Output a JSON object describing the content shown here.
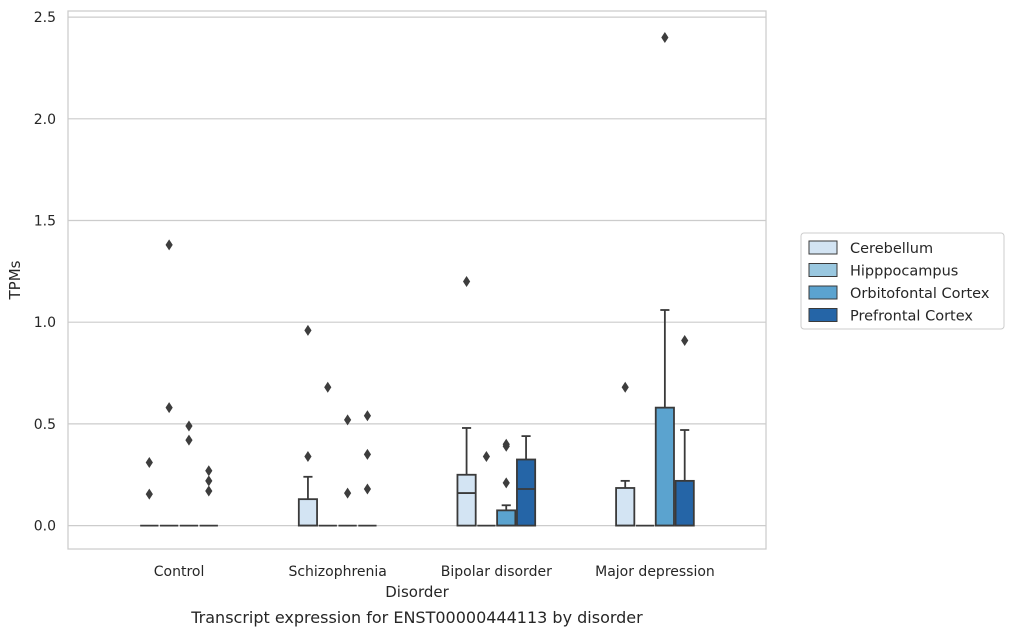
{
  "chart_data": {
    "type": "box",
    "caption": "Transcript expression for ENST00000444113 by disorder",
    "xlabel": "Disorder",
    "ylabel": "TPMs",
    "ylim": [
      -0.115,
      2.53
    ],
    "yticks": [
      0.0,
      0.5,
      1.0,
      1.5,
      2.0,
      2.5
    ],
    "ytick_labels": [
      "0.0",
      "0.5",
      "1.0",
      "1.5",
      "2.0",
      "2.5"
    ],
    "categories": [
      "Control",
      "Schizophrenia",
      "Bipolar disorder",
      "Major depression"
    ],
    "grid": "horizontal",
    "legend_position": "right",
    "series": [
      {
        "name": "Cerebellum",
        "color": "#d3e4f3",
        "boxes": [
          {
            "q1": 0,
            "median": 0,
            "q3": 0,
            "whisker_low": 0,
            "whisker_high": 0,
            "outliers": [
              0.31,
              0.155
            ]
          },
          {
            "q1": 0,
            "median": 0,
            "q3": 0.13,
            "whisker_low": 0,
            "whisker_high": 0.24,
            "outliers": [
              0.96,
              0.34
            ]
          },
          {
            "q1": 0,
            "median": 0.16,
            "q3": 0.25,
            "whisker_low": 0,
            "whisker_high": 0.48,
            "outliers": [
              1.2
            ]
          },
          {
            "q1": 0,
            "median": 0,
            "q3": 0.185,
            "whisker_low": 0,
            "whisker_high": 0.22,
            "outliers": [
              0.68
            ]
          }
        ]
      },
      {
        "name": "Hipppocampus",
        "color": "#9ac8e0",
        "boxes": [
          {
            "q1": 0,
            "median": 0,
            "q3": 0,
            "whisker_low": 0,
            "whisker_high": 0,
            "outliers": [
              1.38,
              0.58
            ]
          },
          {
            "q1": 0,
            "median": 0,
            "q3": 0,
            "whisker_low": 0,
            "whisker_high": 0,
            "outliers": [
              0.68
            ]
          },
          {
            "q1": 0,
            "median": 0,
            "q3": 0,
            "whisker_low": 0,
            "whisker_high": 0,
            "outliers": [
              0.34
            ]
          },
          {
            "q1": 0,
            "median": 0,
            "q3": 0,
            "whisker_low": 0,
            "whisker_high": 0,
            "outliers": []
          }
        ]
      },
      {
        "name": "Orbitofontal Cortex",
        "color": "#5ba3cf",
        "boxes": [
          {
            "q1": 0,
            "median": 0,
            "q3": 0,
            "whisker_low": 0,
            "whisker_high": 0,
            "outliers": [
              0.49,
              0.42
            ]
          },
          {
            "q1": 0,
            "median": 0,
            "q3": 0,
            "whisker_low": 0,
            "whisker_high": 0,
            "outliers": [
              0.52,
              0.16
            ]
          },
          {
            "q1": 0,
            "median": 0,
            "q3": 0.075,
            "whisker_low": 0,
            "whisker_high": 0.1,
            "outliers": [
              0.4,
              0.39,
              0.21
            ]
          },
          {
            "q1": 0,
            "median": 0,
            "q3": 0.58,
            "whisker_low": 0,
            "whisker_high": 1.06,
            "outliers": [
              2.4
            ]
          }
        ]
      },
      {
        "name": "Prefrontal Cortex",
        "color": "#2565a7",
        "boxes": [
          {
            "q1": 0,
            "median": 0,
            "q3": 0,
            "whisker_low": 0,
            "whisker_high": 0,
            "outliers": [
              0.27,
              0.22,
              0.17
            ]
          },
          {
            "q1": 0,
            "median": 0,
            "q3": 0,
            "whisker_low": 0,
            "whisker_high": 0,
            "outliers": [
              0.54,
              0.35,
              0.18
            ]
          },
          {
            "q1": 0,
            "median": 0.18,
            "q3": 0.325,
            "whisker_low": 0,
            "whisker_high": 0.44,
            "outliers": []
          },
          {
            "q1": 0,
            "median": 0,
            "q3": 0.22,
            "whisker_low": 0,
            "whisker_high": 0.47,
            "outliers": [
              0.91
            ]
          }
        ]
      }
    ]
  }
}
